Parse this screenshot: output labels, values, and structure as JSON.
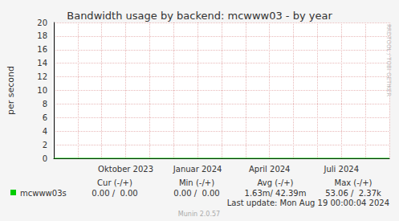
{
  "chart_data": {
    "type": "line",
    "title": "Bandwidth usage by backend: mcwww03 - by year",
    "y_label": "per second",
    "categories": [
      null,
      null,
      null,
      "Oktober 2023",
      null,
      null,
      "Januar 2024",
      null,
      null,
      "April 2024",
      null,
      null,
      "Juli 2024",
      null,
      null
    ],
    "series": [
      {
        "name": "mcwww03s",
        "color": "#00cc00",
        "values": [
          0,
          0,
          0,
          0,
          0,
          0,
          0,
          0,
          0,
          0,
          0,
          0,
          0,
          0,
          0
        ],
        "stats": [
          "0.00 /  0.00",
          "0.00 /  0.00",
          "1.63m/ 42.39m",
          "53.06 /  2.37k"
        ]
      }
    ],
    "stats_header": [
      "Cur (-/+)",
      "Min (-/+)",
      "Avg (-/+)",
      "Max (-/+)"
    ],
    "ylim": [
      0,
      20
    ],
    "yticks": [
      0,
      2,
      4,
      6,
      8,
      10,
      12,
      14,
      16,
      18,
      20
    ],
    "grid": true,
    "footer": "Last update: Mon Aug 19 00:00:04 2024",
    "credit": "Munin 2.0.57",
    "side_text": "RRDTOOL / TOBI OETIKER"
  }
}
